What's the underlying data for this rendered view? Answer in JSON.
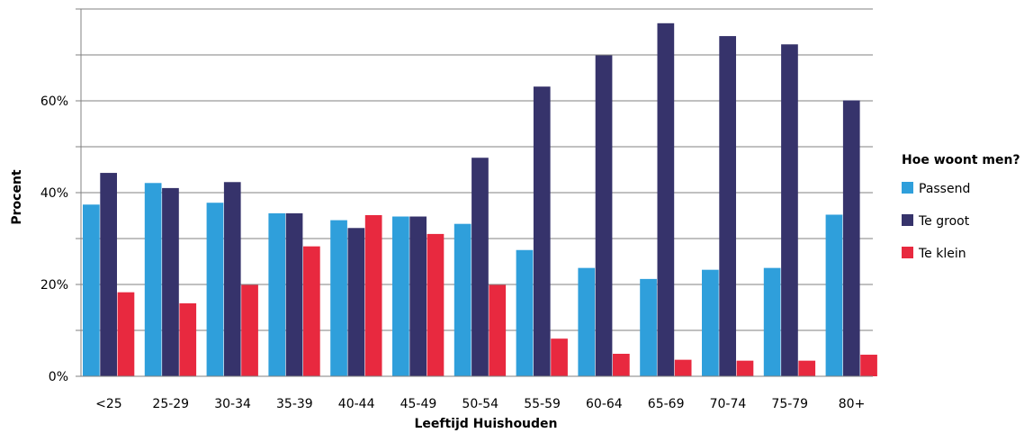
{
  "chart_data": {
    "type": "bar",
    "xlabel": "Leeftijd Huishouden",
    "ylabel": "Procent",
    "ylim": [
      0,
      80
    ],
    "y_ticks": [
      0,
      20,
      40,
      60
    ],
    "y_tick_labels": [
      "0%",
      "20%",
      "40%",
      "60%"
    ],
    "gridlines": [
      0,
      10,
      20,
      30,
      40,
      50,
      60,
      70,
      80
    ],
    "grid": true,
    "legend_title": "Hoe woont men?",
    "legend_position": "right",
    "categories": [
      "<25",
      "25-29",
      "30-34",
      "35-39",
      "40-44",
      "45-49",
      "50-54",
      "55-59",
      "60-64",
      "65-69",
      "70-74",
      "75-79",
      "80+"
    ],
    "series": [
      {
        "name": "Passend",
        "color": "#2f9fdb",
        "values": [
          37.4,
          42.1,
          37.8,
          35.5,
          34.0,
          34.8,
          33.2,
          27.5,
          23.6,
          21.2,
          23.2,
          23.6,
          35.2
        ]
      },
      {
        "name": "Te groot",
        "color": "#36336b",
        "values": [
          44.3,
          41.0,
          42.3,
          35.5,
          32.3,
          34.8,
          47.6,
          63.1,
          69.9,
          76.9,
          74.1,
          72.3,
          60.1
        ]
      },
      {
        "name": "Te klein",
        "color": "#e8293f",
        "values": [
          18.3,
          15.9,
          19.9,
          28.3,
          35.1,
          31.0,
          19.9,
          8.2,
          4.9,
          3.6,
          3.4,
          3.4,
          4.7
        ]
      }
    ]
  }
}
